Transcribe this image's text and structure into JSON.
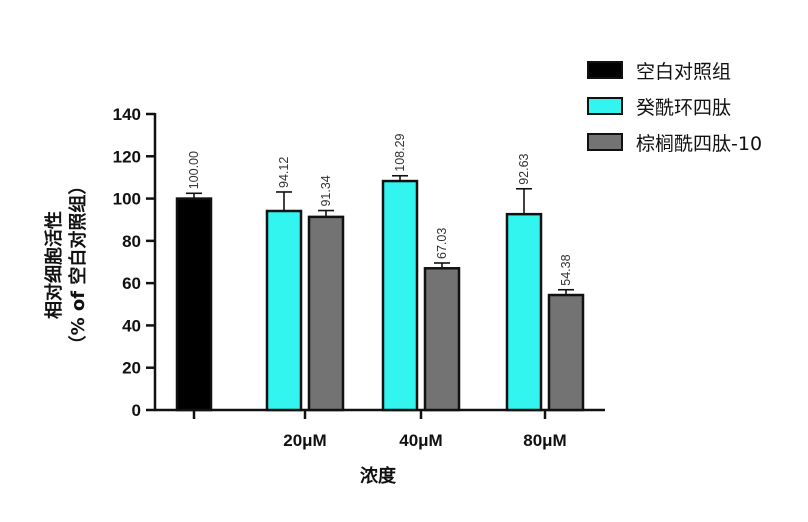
{
  "chart_data": {
    "type": "bar",
    "xlabel": "浓度",
    "ylabel_line1": "相对细胞活性",
    "ylabel_line2": "（% of 空白对照组）",
    "ylim": [
      0,
      140
    ],
    "yticks": [
      "0",
      "20",
      "40",
      "60",
      "80",
      "100",
      "120",
      "140"
    ],
    "legend_position": "top-right",
    "groups": [
      {
        "label": "",
        "bars": [
          {
            "series": "空白对照组",
            "value": 100.0,
            "error": 2.5,
            "label": "100.00"
          }
        ]
      },
      {
        "label": "20μM",
        "bars": [
          {
            "series": "癸酰环四肽",
            "value": 94.12,
            "error": 9.0,
            "label": "94.12"
          },
          {
            "series": "棕榈酰四肽-10",
            "value": 91.34,
            "error": 3.0,
            "label": "91.34"
          }
        ]
      },
      {
        "label": "40μM",
        "bars": [
          {
            "series": "癸酰环四肽",
            "value": 108.29,
            "error": 2.5,
            "label": "108.29"
          },
          {
            "series": "棕榈酰四肽-10",
            "value": 67.03,
            "error": 2.5,
            "label": "67.03"
          }
        ]
      },
      {
        "label": "80μM",
        "bars": [
          {
            "series": "癸酰环四肽",
            "value": 92.63,
            "error": 12.0,
            "label": "92.63"
          },
          {
            "series": "棕榈酰四肽-10",
            "value": 54.38,
            "error": 2.5,
            "label": "54.38"
          }
        ]
      }
    ],
    "series": [
      {
        "name": "空白对照组",
        "color": "#000000"
      },
      {
        "name": "癸酰环四肽",
        "color": "#33f5f0"
      },
      {
        "name": "棕榈酰四肽-10",
        "color": "#737373"
      }
    ]
  }
}
